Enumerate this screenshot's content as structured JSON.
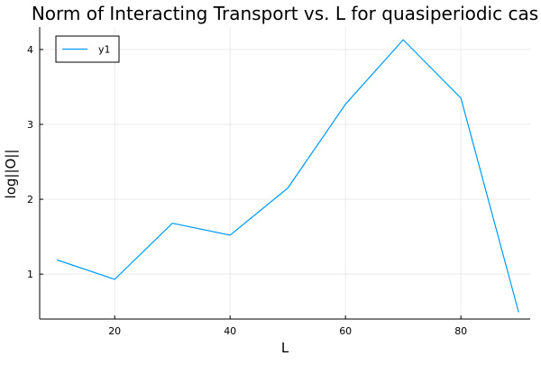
{
  "chart_data": {
    "type": "line",
    "title": "Norm of Interacting Transport vs. L for quasiperiodic cas",
    "xlabel": "L",
    "ylabel": "log||O||",
    "xlim": [
      7,
      92
    ],
    "ylim": [
      0.4,
      4.3
    ],
    "xticks": [
      20,
      40,
      60,
      80
    ],
    "yticks": [
      1,
      2,
      3,
      4
    ],
    "grid": true,
    "legend_position": "top-left",
    "series": [
      {
        "name": "y1",
        "color": "#009AFA",
        "x": [
          10,
          20,
          30,
          40,
          50,
          60,
          70,
          80,
          90
        ],
        "y": [
          1.19,
          0.93,
          1.68,
          1.52,
          2.15,
          3.27,
          4.13,
          3.35,
          0.49
        ]
      }
    ]
  }
}
